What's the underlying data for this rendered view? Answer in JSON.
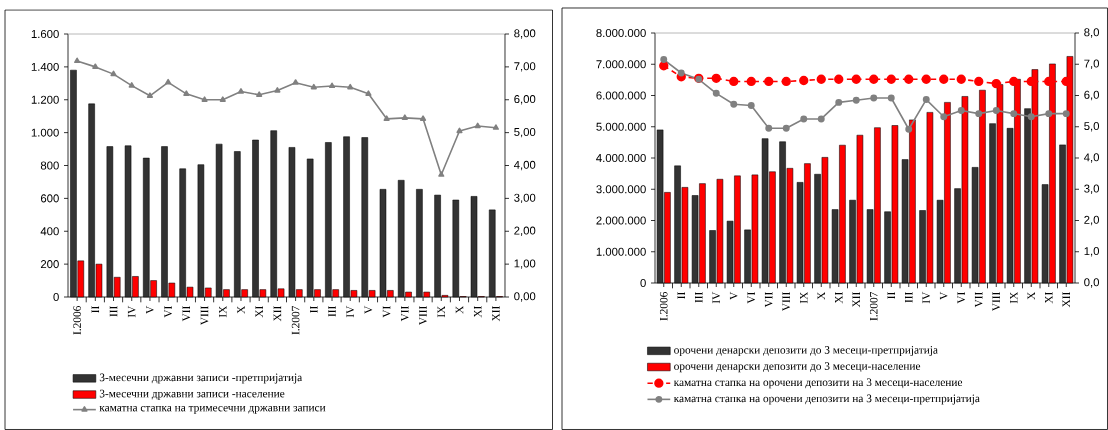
{
  "chart_data": [
    {
      "type": "bar",
      "legend": "bottom",
      "categories": [
        "I.2006",
        "II",
        "III",
        "IV",
        "V",
        "VI",
        "VII",
        "VIII",
        "IX",
        "X",
        "XI",
        "XII",
        "I.2007",
        "II",
        "III",
        "IV",
        "V",
        "VI",
        "VII",
        "VIII",
        "IX",
        "X",
        "XI",
        "XII"
      ],
      "series": [
        {
          "name": "3-месечни државни записи -претпријатија",
          "color": "#333333",
          "values": [
            1380,
            1175,
            915,
            920,
            845,
            915,
            780,
            805,
            930,
            885,
            955,
            1012,
            910,
            840,
            940,
            975,
            970,
            655,
            710,
            655,
            620,
            590,
            612,
            530
          ]
        },
        {
          "name": "3-месечни државни записи -население",
          "color": "#ff0000",
          "values": [
            220,
            200,
            120,
            125,
            100,
            85,
            60,
            55,
            45,
            45,
            45,
            50,
            45,
            45,
            45,
            40,
            40,
            40,
            30,
            30,
            10,
            3,
            3,
            3
          ]
        },
        {
          "name": "каматна стапка на тримесечни државни записи",
          "type": "line",
          "axis": "y2",
          "color": "#808080",
          "marker": "triangle",
          "line_style": "solid",
          "values": [
            7.18,
            7.0,
            6.78,
            6.43,
            6.12,
            6.53,
            6.18,
            6.0,
            6.0,
            6.25,
            6.15,
            6.28,
            6.52,
            6.38,
            6.42,
            6.38,
            6.18,
            5.42,
            5.45,
            5.42,
            3.72,
            5.05,
            5.2,
            5.15
          ]
        }
      ],
      "ylim": [
        0,
        1600
      ],
      "yticks": [
        0,
        200,
        400,
        600,
        800,
        {
          "value": 1000,
          "label": "1.000"
        },
        {
          "value": 1200,
          "label": "1.200"
        },
        {
          "value": 1400,
          "label": "1.400"
        },
        {
          "value": 1600,
          "label": "1.600"
        }
      ],
      "y2lim": [
        0,
        8
      ],
      "y2ticks": [
        {
          "value": 0,
          "label": "0,00"
        },
        {
          "value": 1,
          "label": "1,00"
        },
        {
          "value": 2,
          "label": "2,00"
        },
        {
          "value": 3,
          "label": "3,00"
        },
        {
          "value": 4,
          "label": "4,00"
        },
        {
          "value": 5,
          "label": "5,00"
        },
        {
          "value": 6,
          "label": "6,00"
        },
        {
          "value": 7,
          "label": "7,00"
        },
        {
          "value": 8,
          "label": "8,00"
        }
      ]
    },
    {
      "type": "bar",
      "legend": "bottom",
      "categories": [
        "I.2006",
        "II",
        "III",
        "IV",
        "V",
        "VI",
        "VII",
        "VIII",
        "IX",
        "X",
        "XI",
        "XII",
        "I.2007",
        "II",
        "III",
        "IV",
        "V",
        "VI",
        "VII",
        "VIII",
        "IX",
        "X",
        "XI",
        "XII"
      ],
      "series": [
        {
          "name": "орочени денарски депозити до 3 месеци-претпријатија",
          "color": "#333333",
          "values": [
            4900000,
            3750000,
            2800000,
            1680000,
            1980000,
            1700000,
            4620000,
            4520000,
            3220000,
            3480000,
            2350000,
            2650000,
            2350000,
            2280000,
            3950000,
            2320000,
            2650000,
            3020000,
            3700000,
            5100000,
            4950000,
            5580000,
            3150000,
            4420000
          ]
        },
        {
          "name": "орочени денарски депозити до 3 месеци-население",
          "color": "#ff0000",
          "values": [
            2900000,
            3060000,
            3180000,
            3320000,
            3430000,
            3460000,
            3560000,
            3670000,
            3820000,
            4020000,
            4410000,
            4730000,
            4970000,
            5040000,
            5220000,
            5460000,
            5780000,
            5970000,
            6170000,
            6350000,
            6520000,
            6830000,
            7010000,
            7250000
          ]
        },
        {
          "name": "каматна стапка на орочени депозити на 3 месеци-население",
          "type": "line",
          "axis": "y2",
          "color": "#ff0000",
          "marker": "circle",
          "line_style": "dashed",
          "values": [
            6.95,
            6.6,
            6.55,
            6.55,
            6.45,
            6.45,
            6.45,
            6.45,
            6.48,
            6.52,
            6.52,
            6.52,
            6.52,
            6.52,
            6.52,
            6.52,
            6.52,
            6.52,
            6.45,
            6.38,
            6.45,
            6.45,
            6.45,
            6.45
          ]
        },
        {
          "name": "каматна стапка на орочени депозити на 3 месеци-претпријатија",
          "type": "line",
          "axis": "y2",
          "color": "#808080",
          "marker": "circle",
          "line_style": "solid",
          "values": [
            7.15,
            6.72,
            6.52,
            6.07,
            5.72,
            5.68,
            4.95,
            4.95,
            5.25,
            5.25,
            5.78,
            5.85,
            5.92,
            5.92,
            4.92,
            5.87,
            5.32,
            5.52,
            5.42,
            5.52,
            5.42,
            5.32,
            5.42,
            5.42
          ]
        }
      ],
      "ylim": [
        0,
        8000000
      ],
      "yticks": [
        0,
        {
          "value": 1000000,
          "label": "1.000.000"
        },
        {
          "value": 2000000,
          "label": "2.000.000"
        },
        {
          "value": 3000000,
          "label": "3.000.000"
        },
        {
          "value": 4000000,
          "label": "4.000.000"
        },
        {
          "value": 5000000,
          "label": "5.000.000"
        },
        {
          "value": 6000000,
          "label": "6.000.000"
        },
        {
          "value": 7000000,
          "label": "7.000.000"
        },
        {
          "value": 8000000,
          "label": "8.000.000"
        }
      ],
      "y2lim": [
        0,
        8
      ],
      "y2ticks": [
        {
          "value": 0,
          "label": "0,0"
        },
        {
          "value": 1,
          "label": "1,0"
        },
        {
          "value": 2,
          "label": "2,0"
        },
        {
          "value": 3,
          "label": "3,0"
        },
        {
          "value": 4,
          "label": "4,0"
        },
        {
          "value": 5,
          "label": "5,0"
        },
        {
          "value": 6,
          "label": "6,0"
        },
        {
          "value": 7,
          "label": "7,0"
        },
        {
          "value": 8,
          "label": "8,0"
        }
      ]
    }
  ]
}
